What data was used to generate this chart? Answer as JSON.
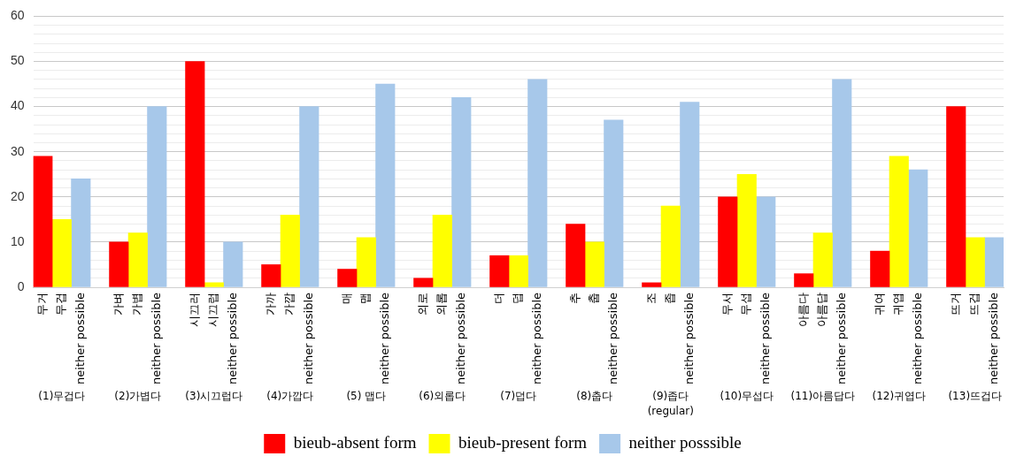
{
  "chart_data": {
    "type": "bar",
    "categories": [
      "무거",
      "무겁",
      "neither possible",
      null,
      "가벼",
      "가볍",
      "neither possible",
      null,
      "시끄러",
      "시끄럽",
      "neither possible",
      null,
      "가까",
      "가깝",
      "neither possible",
      null,
      "매",
      "맵",
      "neither possible",
      null,
      "외로",
      "외롭",
      "neither possible",
      null,
      "더",
      "덥",
      "neither possible",
      null,
      "추",
      "춥",
      "neither possible",
      null,
      "조",
      "좁",
      "neither possible",
      null,
      "무서",
      "무섭",
      "neither possible",
      null,
      "아름다",
      "아름답",
      "neither possible",
      null,
      "귀여",
      "귀엽",
      "neither possible",
      null,
      "뜨거",
      "뜨겁",
      "neither possible"
    ],
    "series": [
      {
        "name": "bieub-absent form",
        "color": "#ff0000",
        "values": [
          29,
          null,
          null,
          null,
          10,
          null,
          null,
          null,
          50,
          null,
          null,
          null,
          5,
          null,
          null,
          null,
          4,
          null,
          null,
          null,
          2,
          null,
          null,
          null,
          7,
          null,
          null,
          null,
          14,
          null,
          null,
          null,
          1,
          null,
          null,
          null,
          20,
          null,
          null,
          null,
          3,
          null,
          null,
          null,
          8,
          null,
          null,
          null,
          40,
          null,
          null
        ]
      },
      {
        "name": "bieub-present form",
        "color": "#ffff00",
        "values": [
          null,
          15,
          null,
          null,
          null,
          12,
          null,
          null,
          null,
          1,
          null,
          null,
          null,
          16,
          null,
          null,
          null,
          11,
          null,
          null,
          null,
          16,
          null,
          null,
          null,
          7,
          null,
          null,
          null,
          10,
          null,
          null,
          null,
          18,
          null,
          null,
          null,
          25,
          null,
          null,
          null,
          12,
          null,
          null,
          null,
          29,
          null,
          null,
          null,
          11,
          null
        ]
      },
      {
        "name": "neither posssible",
        "color": "#a7c8ea",
        "values": [
          null,
          null,
          24,
          null,
          null,
          null,
          40,
          null,
          null,
          null,
          10,
          null,
          null,
          null,
          40,
          null,
          null,
          null,
          45,
          null,
          null,
          null,
          42,
          null,
          null,
          null,
          46,
          null,
          null,
          null,
          37,
          null,
          null,
          null,
          41,
          null,
          null,
          null,
          20,
          null,
          null,
          null,
          46,
          null,
          null,
          null,
          26,
          null,
          null,
          null,
          11
        ]
      }
    ],
    "annotations": [
      "(1)무겁다",
      "(2)가볍다",
      "(3)시끄럽다",
      "(4)가깝다",
      "(5) 맵다",
      "(6)외롭다",
      "(7)덥다",
      "(8)춥다",
      "(9)좁다\n(regular)",
      "(10)무섭다",
      "(11)아름답다",
      "(12)귀엽다",
      "(13)뜨겁다"
    ],
    "ylim": [
      0,
      60
    ],
    "yticks": [
      0,
      {
        "value": 2,
        "label": null
      },
      {
        "value": 4,
        "label": null
      },
      {
        "value": 6,
        "label": null
      },
      {
        "value": 8,
        "label": null
      },
      10,
      {
        "value": 12,
        "label": null
      },
      {
        "value": 14,
        "label": null
      },
      {
        "value": 16,
        "label": null
      },
      {
        "value": 18,
        "label": null
      },
      20,
      {
        "value": 22,
        "label": null
      },
      {
        "value": 24,
        "label": null
      },
      {
        "value": 26,
        "label": null
      },
      {
        "value": 28,
        "label": null
      },
      30,
      {
        "value": 32,
        "label": null
      },
      {
        "value": 34,
        "label": null
      },
      {
        "value": 36,
        "label": null
      },
      {
        "value": 38,
        "label": null
      },
      40,
      {
        "value": 42,
        "label": null
      },
      {
        "value": 44,
        "label": null
      },
      {
        "value": 46,
        "label": null
      },
      {
        "value": 48,
        "label": null
      },
      50,
      {
        "value": 52,
        "label": null
      },
      {
        "value": 54,
        "label": null
      },
      {
        "value": 56,
        "label": null
      },
      {
        "value": 58,
        "label": null
      },
      60
    ],
    "grid": "y",
    "legend": "bottom"
  }
}
